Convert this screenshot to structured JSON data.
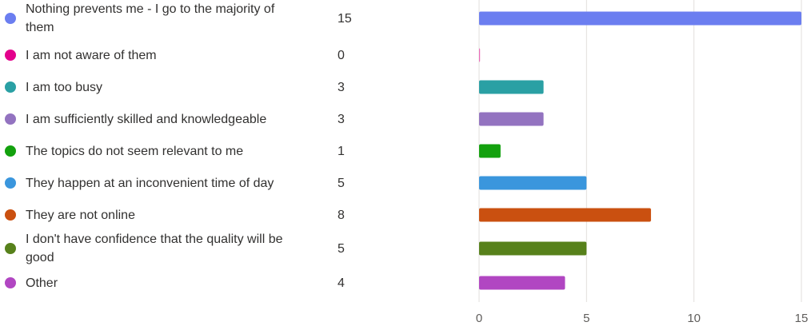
{
  "chart_data": {
    "type": "bar",
    "orientation": "horizontal",
    "categories": [
      "Nothing prevents me - I go to the majority of them",
      "I am not aware of them",
      "I am too busy",
      "I am sufficiently skilled and knowledgeable",
      "The topics do not seem relevant to me",
      "They happen at an inconvenient time of day",
      "They are not online",
      "I don't have confidence that the quality will be good",
      "Other"
    ],
    "values": [
      15,
      0,
      3,
      3,
      1,
      5,
      8,
      5,
      4
    ],
    "colors": [
      "#6b7ef0",
      "#e3008c",
      "#2aa0a4",
      "#9373c0",
      "#13a10e",
      "#3a96dd",
      "#ca5010",
      "#57811b",
      "#b146c2"
    ],
    "xlim": [
      0,
      15
    ],
    "xticks": [
      0,
      5,
      10,
      15
    ],
    "grid": true,
    "legend": "left"
  }
}
